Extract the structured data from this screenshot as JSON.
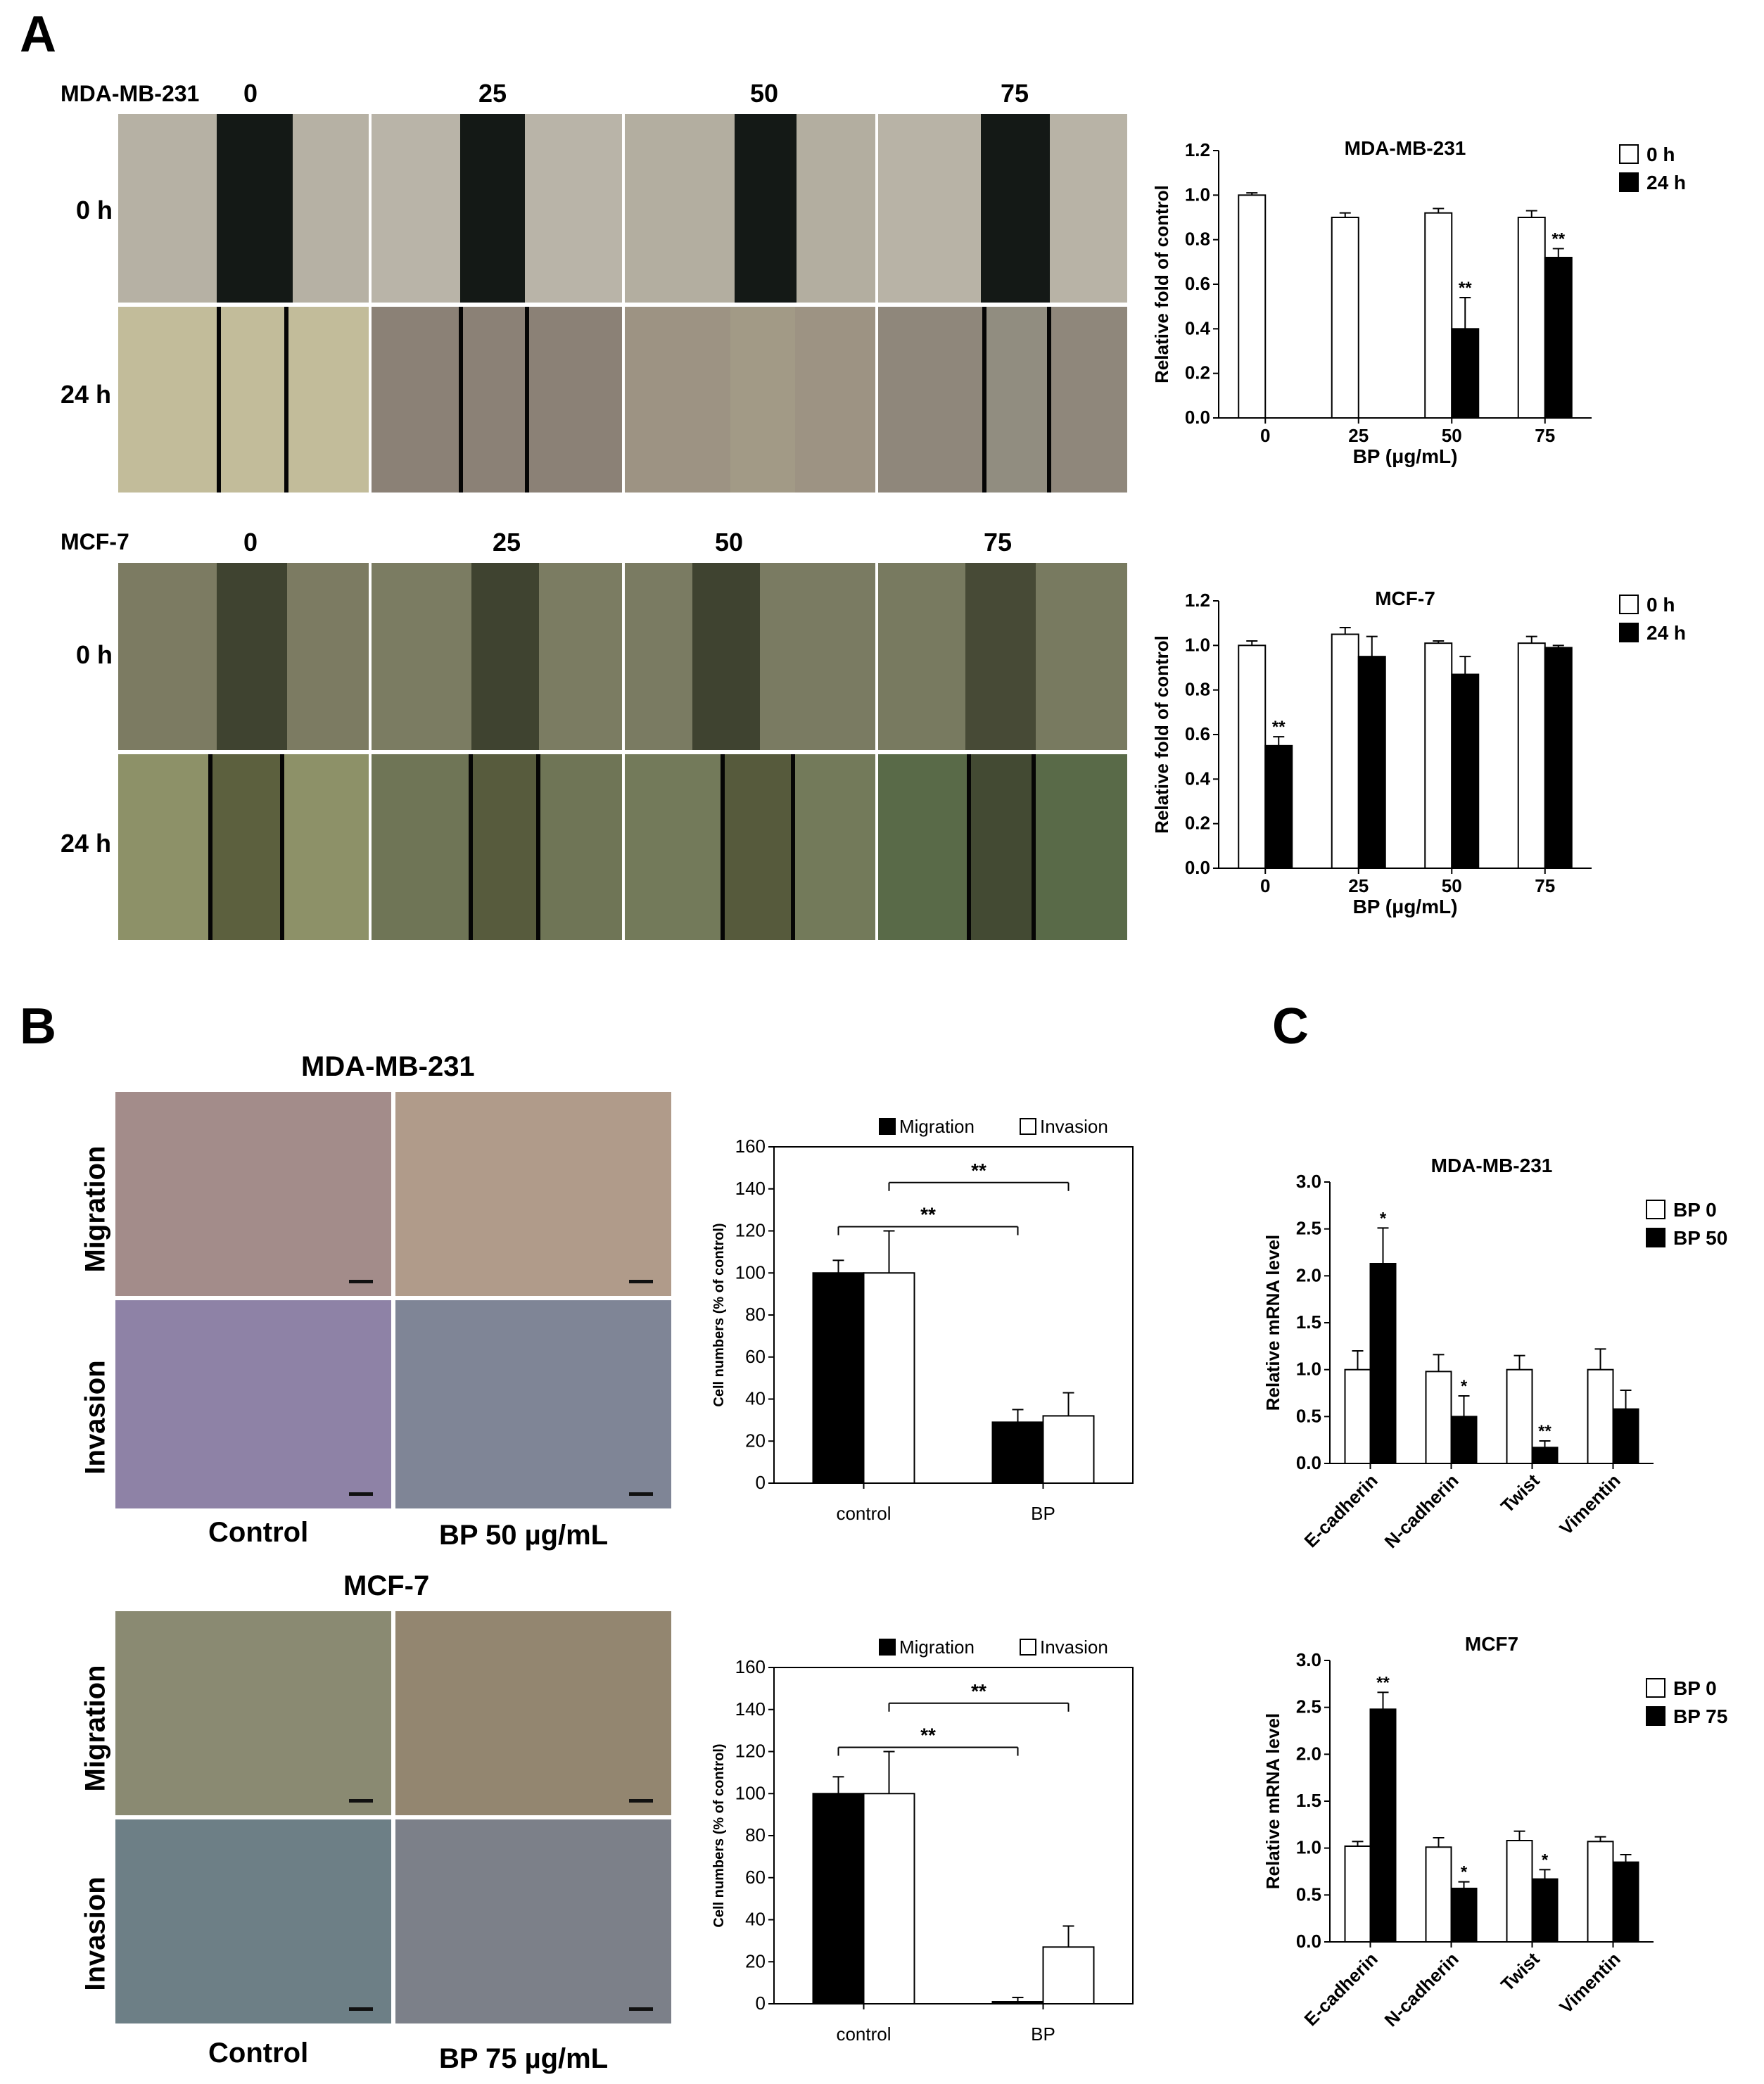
{
  "panels": {
    "a": "A",
    "b": "B",
    "c": "C"
  },
  "panel_a": {
    "rows": [
      {
        "cell_line": "MDA-MB-231",
        "doses": [
          "0",
          "25",
          "50",
          "75"
        ],
        "times": [
          "0 h",
          "24 h"
        ]
      },
      {
        "cell_line": "MCF-7",
        "doses": [
          "0",
          "25",
          "50",
          "75"
        ],
        "times": [
          "0 h",
          "24 h"
        ]
      }
    ]
  },
  "panel_b": {
    "blocks": [
      {
        "cell_line": "MDA-MB-231",
        "row_labels": [
          "Migration",
          "Invasion"
        ],
        "col_labels": [
          "Control",
          "BP 50 µg/mL"
        ]
      },
      {
        "cell_line": "MCF-7",
        "row_labels": [
          "Migration",
          "Invasion"
        ],
        "col_labels": [
          "Control",
          "BP 75 µg/mL"
        ]
      }
    ]
  },
  "colors": {
    "white_bar": "#ffffff",
    "black_bar": "#000000",
    "axis": "#000000",
    "mda_img": "#b6b1a4",
    "mcf_img": "#7b7c5f",
    "gap_dark": "#141916",
    "gap_mcf": "#3f4330",
    "stain_purple": "#6a3fa0"
  },
  "chart_data": [
    {
      "id": "a1",
      "type": "bar",
      "title": "MDA-MB-231",
      "xlabel": "BP  (μg/mL)",
      "ylabel": "Relative fold of control",
      "categories": [
        "0",
        "25",
        "50",
        "75"
      ],
      "ylim": [
        0,
        1.2
      ],
      "yticks": [
        "0.0",
        "0.2",
        "0.4",
        "0.6",
        "0.8",
        "1.0",
        "1.2"
      ],
      "series": [
        {
          "name": "0 h",
          "values": [
            1.0,
            0.9,
            0.92,
            0.9
          ],
          "errors": [
            0.01,
            0.02,
            0.02,
            0.03
          ]
        },
        {
          "name": "24 h",
          "values": [
            null,
            null,
            0.4,
            0.72
          ],
          "errors": [
            null,
            null,
            0.14,
            0.04
          ]
        }
      ],
      "annotations": [
        {
          "category": "50",
          "series": "24 h",
          "text": "**"
        },
        {
          "category": "75",
          "series": "24 h",
          "text": "**"
        }
      ],
      "legend": "right"
    },
    {
      "id": "a2",
      "type": "bar",
      "title": "MCF-7",
      "xlabel": "BP  (μg/mL)",
      "ylabel": "Relative fold of control",
      "categories": [
        "0",
        "25",
        "50",
        "75"
      ],
      "ylim": [
        0,
        1.2
      ],
      "yticks": [
        "0.0",
        "0.2",
        "0.4",
        "0.6",
        "0.8",
        "1.0",
        "1.2"
      ],
      "series": [
        {
          "name": "0 h",
          "values": [
            1.0,
            1.05,
            1.01,
            1.01
          ],
          "errors": [
            0.02,
            0.03,
            0.01,
            0.03
          ]
        },
        {
          "name": "24 h",
          "values": [
            0.55,
            0.95,
            0.87,
            0.99
          ],
          "errors": [
            0.04,
            0.09,
            0.08,
            0.01
          ]
        }
      ],
      "annotations": [
        {
          "category": "0",
          "series": "24 h",
          "text": "**"
        }
      ],
      "legend": "right"
    },
    {
      "id": "b1",
      "type": "bar",
      "title": "",
      "xlabel": "",
      "ylabel": "Cell numbers (% of control)",
      "categories": [
        "control",
        "BP"
      ],
      "ylim": [
        0,
        160
      ],
      "yticks": [
        "0",
        "20",
        "40",
        "60",
        "80",
        "100",
        "120",
        "140",
        "160"
      ],
      "series": [
        {
          "name": "Migration",
          "values": [
            100,
            29
          ],
          "errors": [
            6,
            6
          ]
        },
        {
          "name": "Invasion",
          "values": [
            100,
            32
          ],
          "errors": [
            20,
            11
          ]
        }
      ],
      "annotations": [
        {
          "from": "control Migration",
          "to": "BP Migration",
          "text": "**"
        },
        {
          "from": "control Invasion",
          "to": "BP Invasion",
          "text": "**"
        }
      ],
      "legend": "top"
    },
    {
      "id": "b2",
      "type": "bar",
      "title": "",
      "xlabel": "",
      "ylabel": "Cell numbers (% of control)",
      "categories": [
        "control",
        "BP"
      ],
      "ylim": [
        0,
        160
      ],
      "yticks": [
        "0",
        "20",
        "40",
        "60",
        "80",
        "100",
        "120",
        "140",
        "160"
      ],
      "series": [
        {
          "name": "Migration",
          "values": [
            100,
            1
          ],
          "errors": [
            8,
            2
          ]
        },
        {
          "name": "Invasion",
          "values": [
            100,
            27
          ],
          "errors": [
            20,
            10
          ]
        }
      ],
      "annotations": [
        {
          "from": "control Migration",
          "to": "BP Migration",
          "text": "**"
        },
        {
          "from": "control Invasion",
          "to": "BP Invasion",
          "text": "**"
        }
      ],
      "legend": "top"
    },
    {
      "id": "c1",
      "type": "bar",
      "title": "MDA-MB-231",
      "xlabel": "",
      "ylabel": "Relative mRNA level",
      "categories": [
        "E-cadherin",
        "N-cadherin",
        "Twist",
        "Vimentin"
      ],
      "ylim": [
        0,
        3.0
      ],
      "yticks": [
        "0.0",
        "0.5",
        "1.0",
        "1.5",
        "2.0",
        "2.5",
        "3.0"
      ],
      "series": [
        {
          "name": "BP 0",
          "values": [
            1.0,
            0.98,
            1.0,
            1.0
          ],
          "errors": [
            0.2,
            0.18,
            0.15,
            0.22
          ]
        },
        {
          "name": "BP 50",
          "values": [
            2.13,
            0.5,
            0.17,
            0.58
          ],
          "errors": [
            0.38,
            0.22,
            0.07,
            0.2
          ]
        }
      ],
      "annotations": [
        {
          "category": "E-cadherin",
          "series": "BP 50",
          "text": "*"
        },
        {
          "category": "N-cadherin",
          "series": "BP 50",
          "text": "*"
        },
        {
          "category": "Twist",
          "series": "BP 50",
          "text": "**"
        }
      ],
      "legend": "right"
    },
    {
      "id": "c2",
      "type": "bar",
      "title": "MCF7",
      "xlabel": "",
      "ylabel": "Relative mRNA level",
      "categories": [
        "E-cadherin",
        "N-cadherin",
        "Twist",
        "Vimentin"
      ],
      "ylim": [
        0,
        3.0
      ],
      "yticks": [
        "0.0",
        "0.5",
        "1.0",
        "1.5",
        "2.0",
        "2.5",
        "3.0"
      ],
      "series": [
        {
          "name": "BP 0",
          "values": [
            1.02,
            1.01,
            1.08,
            1.07
          ],
          "errors": [
            0.05,
            0.1,
            0.1,
            0.05
          ]
        },
        {
          "name": "BP 75",
          "values": [
            2.48,
            0.57,
            0.67,
            0.85
          ],
          "errors": [
            0.18,
            0.07,
            0.1,
            0.08
          ]
        }
      ],
      "annotations": [
        {
          "category": "E-cadherin",
          "series": "BP 75",
          "text": "**"
        },
        {
          "category": "N-cadherin",
          "series": "BP 75",
          "text": "*"
        },
        {
          "category": "Twist",
          "series": "BP 75",
          "text": "*"
        }
      ],
      "legend": "right"
    }
  ]
}
